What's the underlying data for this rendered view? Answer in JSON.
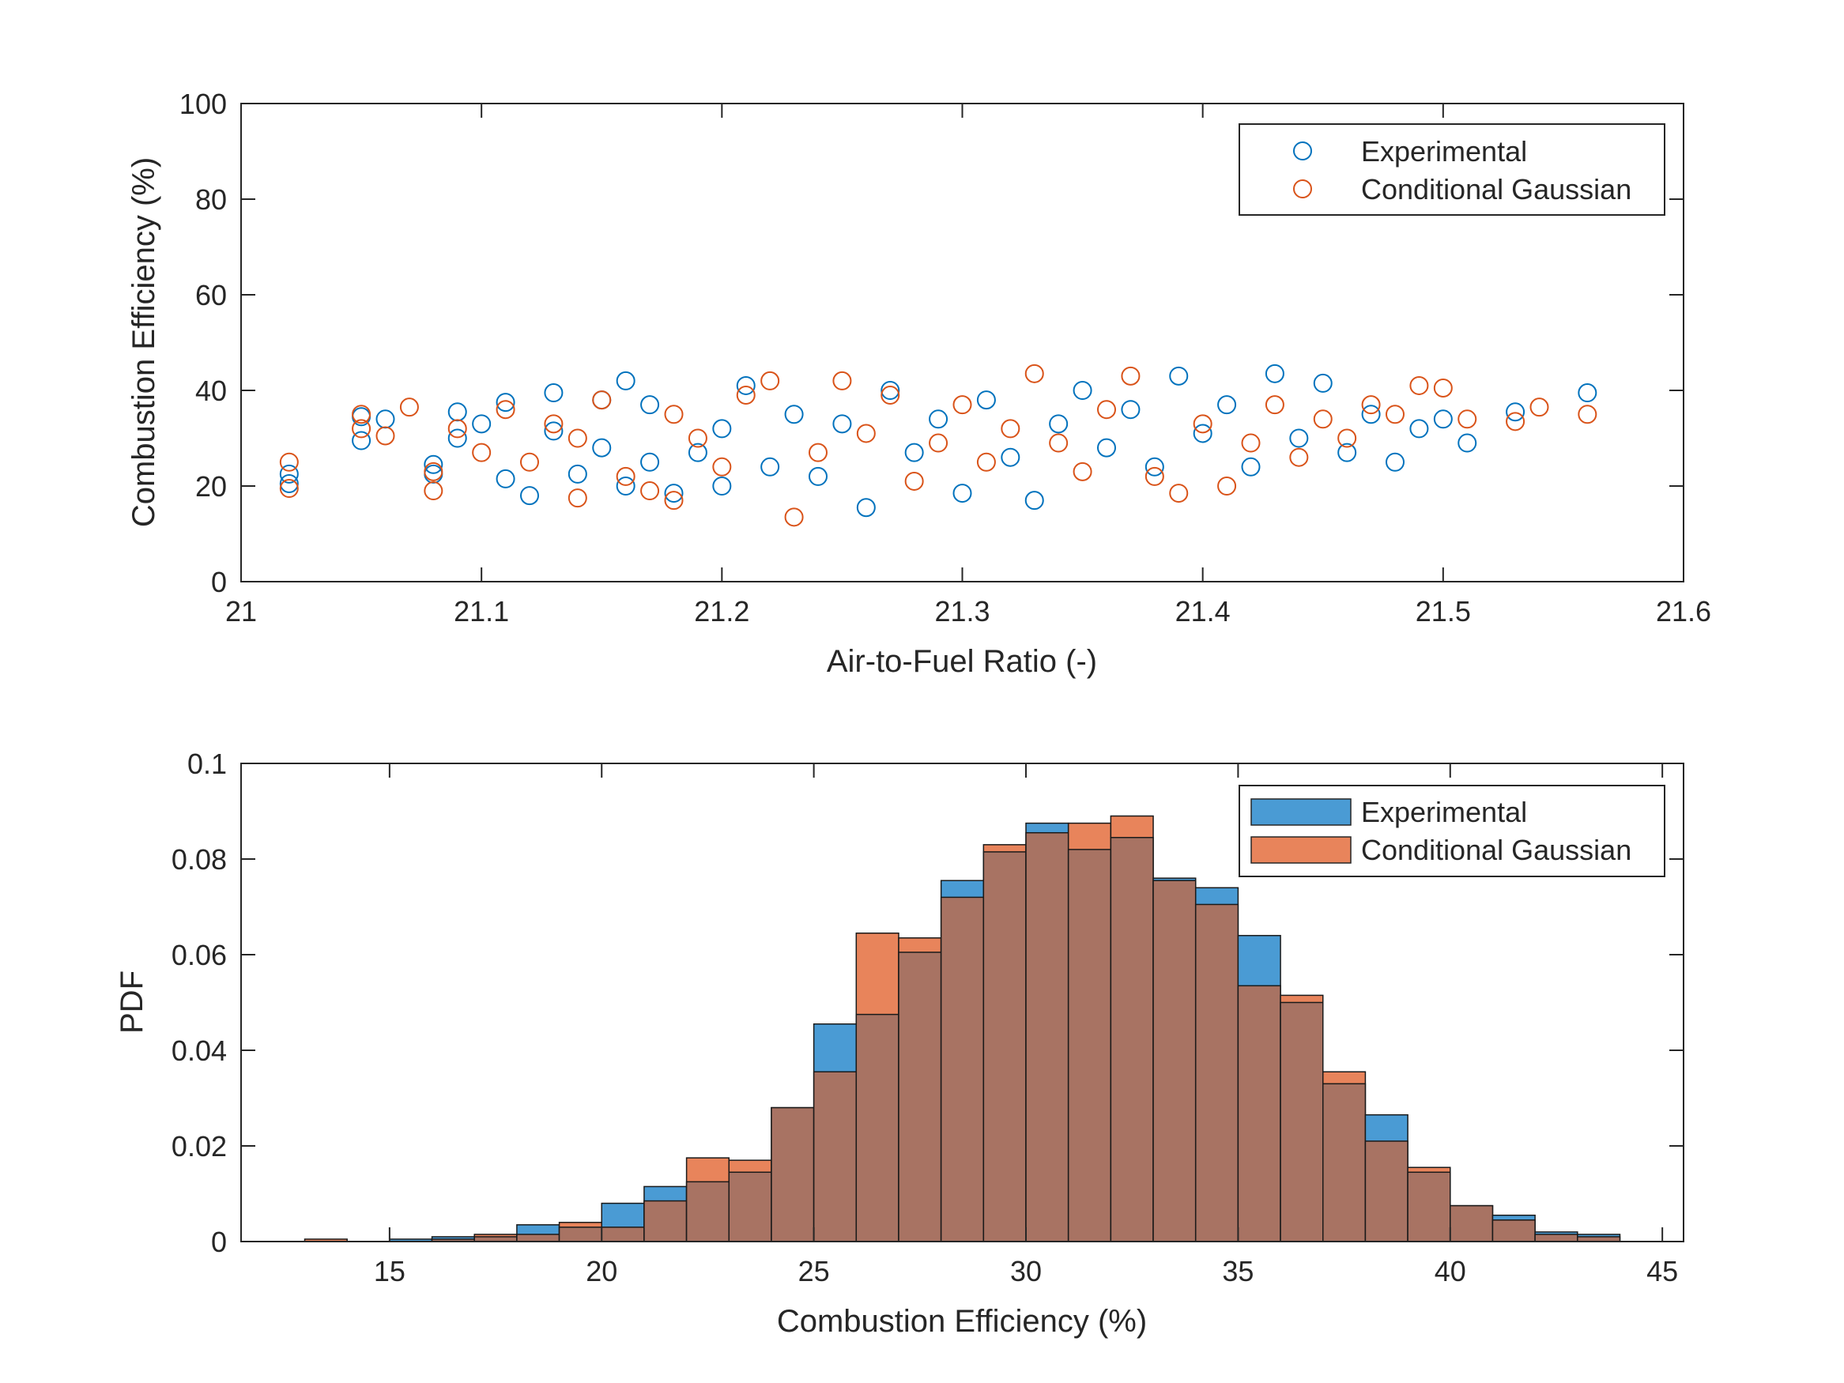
{
  "colors": {
    "experimental": "#0072BD",
    "gaussian": "#D95319",
    "hist_experimental": "#4A9BD4",
    "hist_gaussian": "#E8845B",
    "hist_overlap": "#A87363",
    "axis": "#262626"
  },
  "chart_data": [
    {
      "type": "scatter",
      "xlabel": "Air-to-Fuel Ratio (-)",
      "ylabel": "Combustion Efficiency (%)",
      "xlim": [
        21,
        21.6
      ],
      "ylim": [
        0,
        100
      ],
      "xticks": [
        21,
        21.1,
        21.2,
        21.3,
        21.4,
        21.5,
        21.6
      ],
      "yticks": [
        0,
        20,
        40,
        60,
        80,
        100
      ],
      "xtick_labels": [
        "21",
        "21.1",
        "21.2",
        "21.3",
        "21.4",
        "21.5",
        "21.6"
      ],
      "ytick_labels": [
        "0",
        "20",
        "40",
        "60",
        "80",
        "100"
      ],
      "legend_position": "top-right",
      "marker": "open-circle",
      "series": [
        {
          "name": "Experimental",
          "x": [
            21.02,
            21.02,
            21.05,
            21.05,
            21.06,
            21.08,
            21.08,
            21.09,
            21.09,
            21.1,
            21.11,
            21.11,
            21.12,
            21.13,
            21.13,
            21.14,
            21.15,
            21.15,
            21.16,
            21.16,
            21.17,
            21.17,
            21.18,
            21.19,
            21.2,
            21.2,
            21.21,
            21.22,
            21.23,
            21.24,
            21.25,
            21.26,
            21.27,
            21.28,
            21.29,
            21.3,
            21.31,
            21.32,
            21.33,
            21.34,
            21.35,
            21.36,
            21.37,
            21.38,
            21.39,
            21.4,
            21.41,
            21.42,
            21.43,
            21.44,
            21.45,
            21.46,
            21.47,
            21.48,
            21.49,
            21.5,
            21.51,
            21.53,
            21.56
          ],
          "y": [
            20.5,
            22.5,
            29.5,
            34.5,
            34,
            24.5,
            22.5,
            35.5,
            30,
            33,
            21.5,
            37.5,
            18,
            31.5,
            39.5,
            22.5,
            38,
            28,
            42,
            20,
            25,
            37,
            18.5,
            27,
            32,
            20,
            41,
            24,
            35,
            22,
            33,
            15.5,
            40,
            27,
            34,
            18.5,
            38,
            26,
            17,
            33,
            40,
            28,
            36,
            24,
            43,
            31,
            37,
            24,
            43.5,
            30,
            41.5,
            27,
            35,
            25,
            32,
            34,
            29,
            35.5,
            39.5
          ]
        },
        {
          "name": "Conditional Gaussian",
          "x": [
            21.02,
            21.02,
            21.05,
            21.05,
            21.06,
            21.07,
            21.08,
            21.08,
            21.09,
            21.1,
            21.11,
            21.12,
            21.13,
            21.14,
            21.14,
            21.15,
            21.16,
            21.17,
            21.18,
            21.18,
            21.19,
            21.2,
            21.21,
            21.22,
            21.23,
            21.24,
            21.25,
            21.26,
            21.27,
            21.28,
            21.29,
            21.3,
            21.31,
            21.32,
            21.33,
            21.34,
            21.35,
            21.36,
            21.37,
            21.38,
            21.39,
            21.4,
            21.41,
            21.42,
            21.43,
            21.44,
            21.45,
            21.46,
            21.47,
            21.48,
            21.49,
            21.5,
            21.51,
            21.53,
            21.54,
            21.56
          ],
          "y": [
            25,
            19.5,
            32,
            35,
            30.5,
            36.5,
            19,
            23,
            32,
            27,
            36,
            25,
            33,
            17.5,
            30,
            38,
            22,
            19,
            17,
            35,
            30,
            24,
            39,
            42,
            13.5,
            27,
            42,
            31,
            39,
            21,
            29,
            37,
            25,
            32,
            43.5,
            29,
            23,
            36,
            43,
            22,
            18.5,
            33,
            20,
            29,
            37,
            26,
            34,
            30,
            37,
            35,
            41,
            40.5,
            34,
            33.5,
            36.5,
            35
          ]
        }
      ]
    },
    {
      "type": "bar",
      "subtype": "histogram",
      "xlabel": "Combustion Efficiency (%)",
      "ylabel": "PDF",
      "xlim": [
        11.5,
        45.5
      ],
      "ylim": [
        0,
        0.1
      ],
      "xticks": [
        15,
        20,
        25,
        30,
        35,
        40,
        45
      ],
      "yticks": [
        0,
        0.02,
        0.04,
        0.06,
        0.08,
        0.1
      ],
      "xtick_labels": [
        "15",
        "20",
        "25",
        "30",
        "35",
        "40",
        "45"
      ],
      "ytick_labels": [
        "0",
        "0.02",
        "0.04",
        "0.06",
        "0.08",
        "0.1"
      ],
      "legend_position": "top-right",
      "bin_edges": [
        13,
        14,
        15,
        16,
        17,
        18,
        19,
        20,
        21,
        22,
        23,
        24,
        25,
        26,
        27,
        28,
        29,
        30,
        31,
        32,
        33,
        34,
        35,
        36,
        37,
        38,
        39,
        40,
        41,
        42,
        43,
        44
      ],
      "series": [
        {
          "name": "Experimental",
          "values": [
            0,
            0,
            0.0005,
            0.001,
            0.001,
            0.0035,
            0.003,
            0.008,
            0.0115,
            0.0125,
            0.0145,
            0.028,
            0.0455,
            0.0475,
            0.0605,
            0.0755,
            0.0815,
            0.0875,
            0.082,
            0.0845,
            0.076,
            0.074,
            0.064,
            0.05,
            0.033,
            0.0265,
            0.0145,
            0.0075,
            0.0055,
            0.002,
            0.0015
          ]
        },
        {
          "name": "Conditional Gaussian",
          "values": [
            0.0005,
            0,
            0,
            0.0005,
            0.0015,
            0.0015,
            0.004,
            0.003,
            0.0085,
            0.0175,
            0.017,
            0.028,
            0.0355,
            0.0645,
            0.0635,
            0.072,
            0.083,
            0.0855,
            0.0875,
            0.089,
            0.0755,
            0.0705,
            0.0535,
            0.0515,
            0.0355,
            0.021,
            0.0155,
            0.0075,
            0.0045,
            0.0015,
            0.001
          ]
        }
      ]
    }
  ]
}
